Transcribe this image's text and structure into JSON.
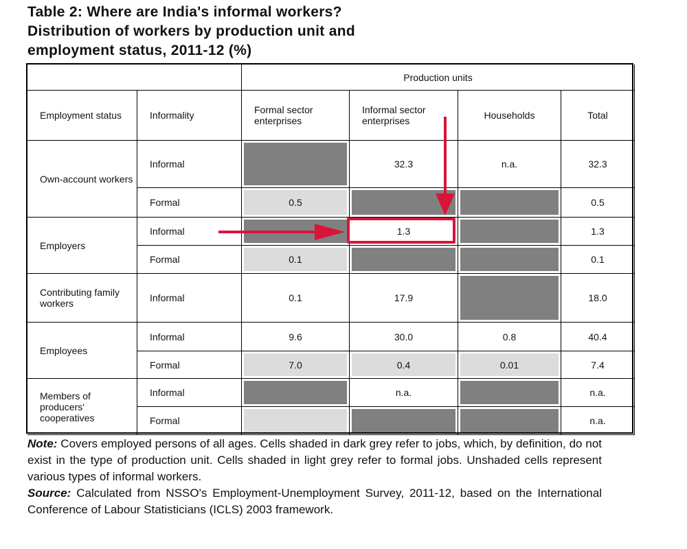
{
  "title": [
    "Table 2: Where are India's informal workers?",
    "Distribution of workers by production unit and",
    "employment status, 2011-12 (%)"
  ],
  "header": {
    "group": "Production units",
    "employment_status": "Employment status",
    "informality": "Informality",
    "cols": [
      "Formal sector enterprises",
      "Informal sector enterprises",
      "Households",
      "Total"
    ]
  },
  "groups": [
    {
      "label": "Own-account workers",
      "rows": [
        {
          "informality": "Informal",
          "cells": [
            {
              "v": "",
              "shade": "dark"
            },
            {
              "v": "32.3",
              "shade": "none"
            },
            {
              "v": "n.a.",
              "shade": "none"
            },
            {
              "v": "32.3",
              "shade": "none"
            }
          ]
        },
        {
          "informality": "Formal",
          "cells": [
            {
              "v": "0.5",
              "shade": "light"
            },
            {
              "v": "",
              "shade": "dark"
            },
            {
              "v": "",
              "shade": "dark"
            },
            {
              "v": "0.5",
              "shade": "none"
            }
          ]
        }
      ]
    },
    {
      "label": "Employers",
      "rows": [
        {
          "informality": "Informal",
          "cells": [
            {
              "v": "",
              "shade": "dark"
            },
            {
              "v": "1.3",
              "shade": "none"
            },
            {
              "v": "",
              "shade": "dark"
            },
            {
              "v": "1.3",
              "shade": "none"
            }
          ]
        },
        {
          "informality": "Formal",
          "cells": [
            {
              "v": "0.1",
              "shade": "light"
            },
            {
              "v": "",
              "shade": "dark"
            },
            {
              "v": "",
              "shade": "dark"
            },
            {
              "v": "0.1",
              "shade": "none"
            }
          ]
        }
      ]
    },
    {
      "label": "Contributing family workers",
      "rows": [
        {
          "informality": "Informal",
          "cells": [
            {
              "v": "0.1",
              "shade": "none"
            },
            {
              "v": "17.9",
              "shade": "none"
            },
            {
              "v": "",
              "shade": "dark"
            },
            {
              "v": "18.0",
              "shade": "none"
            }
          ]
        }
      ]
    },
    {
      "label": "Employees",
      "rows": [
        {
          "informality": "Informal",
          "cells": [
            {
              "v": "9.6",
              "shade": "none"
            },
            {
              "v": "30.0",
              "shade": "none"
            },
            {
              "v": "0.8",
              "shade": "none"
            },
            {
              "v": "40.4",
              "shade": "none"
            }
          ]
        },
        {
          "informality": "Formal",
          "cells": [
            {
              "v": "7.0",
              "shade": "light"
            },
            {
              "v": "0.4",
              "shade": "light"
            },
            {
              "v": "0.01",
              "shade": "light"
            },
            {
              "v": "7.4",
              "shade": "none"
            }
          ]
        }
      ]
    },
    {
      "label": "Members of producers' cooperatives",
      "rows": [
        {
          "informality": "Informal",
          "cells": [
            {
              "v": "",
              "shade": "dark"
            },
            {
              "v": "n.a.",
              "shade": "none"
            },
            {
              "v": "",
              "shade": "dark"
            },
            {
              "v": "n.a.",
              "shade": "none"
            }
          ]
        },
        {
          "informality": "Formal",
          "cells": [
            {
              "v": "",
              "shade": "light"
            },
            {
              "v": "",
              "shade": "dark"
            },
            {
              "v": "",
              "shade": "dark"
            },
            {
              "v": "n.a.",
              "shade": "none"
            }
          ]
        }
      ]
    }
  ],
  "note": {
    "label": "Note:",
    "text": " Covers employed persons of all ages. Cells shaded in dark grey refer to jobs, which, by definition, do not exist in the type of production unit. Cells shaded in light grey refer to formal jobs. Unshaded cells represent various types of informal workers."
  },
  "source": {
    "label": "Source:",
    "text": " Calculated from NSSO's Employment-Unemployment Survey, 2011-12, based on the International Conference of Labour Statisticians (ICLS) 2003 framework."
  },
  "colors": {
    "accent": "#d9143a",
    "dark": "#808080",
    "light": "#dcdcdc"
  }
}
